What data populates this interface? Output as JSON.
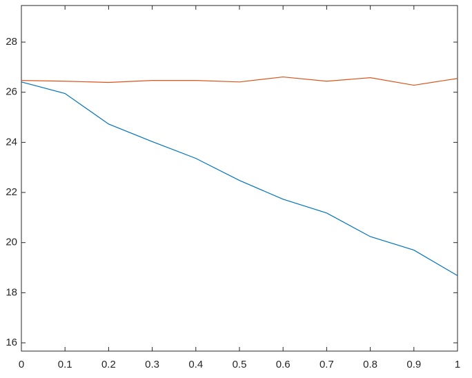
{
  "chart_data": {
    "type": "line",
    "x": [
      0,
      0.1,
      0.2,
      0.3,
      0.4,
      0.5,
      0.6,
      0.7,
      0.8,
      0.9,
      1
    ],
    "series": [
      {
        "color": "#0072bd",
        "values": [
          26.41,
          25.95,
          24.73,
          24.03,
          23.36,
          22.48,
          21.73,
          21.18,
          20.24,
          19.7,
          18.68
        ]
      },
      {
        "color": "#d95319",
        "values": [
          26.47,
          26.44,
          26.39,
          26.47,
          26.47,
          26.41,
          26.61,
          26.44,
          26.58,
          26.28,
          26.55
        ]
      }
    ],
    "xlim": [
      0,
      1
    ],
    "xticks": [
      0,
      0.1,
      0.2,
      0.3,
      0.4,
      0.5,
      0.6,
      0.7,
      0.8,
      0.9,
      1
    ],
    "ylim": [
      15.67,
      29.46
    ],
    "yticks": [
      16,
      18,
      20,
      22,
      24,
      26,
      28
    ],
    "grid": false,
    "box": true
  }
}
